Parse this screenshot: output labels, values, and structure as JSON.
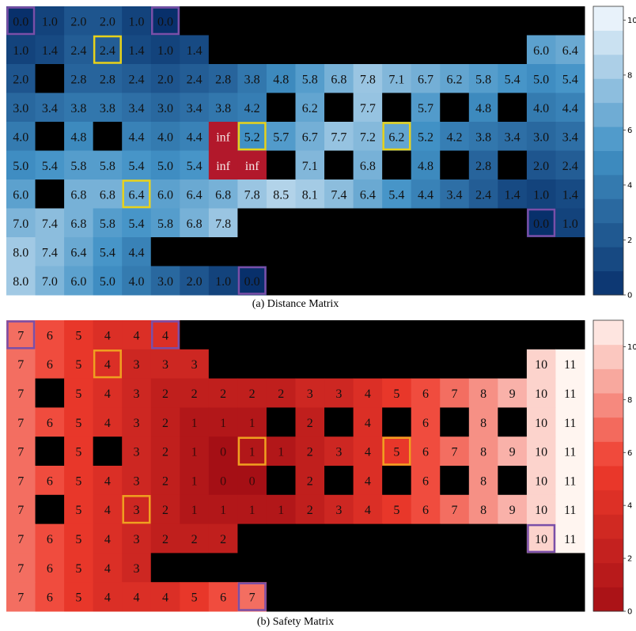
{
  "chart_data": [
    {
      "type": "heatmap",
      "title": "(a) Distance Matrix",
      "colormap": "blues_reversed",
      "colors": {
        "low": "#08306b",
        "mid": "#4292c6",
        "high": "#f7fbff",
        "obstacle": "#000000",
        "highlight_yellow": "#e8d21a",
        "highlight_purple": "#7a4fa8",
        "inf_cell": "#b2182b"
      },
      "colorbar": {
        "min": 0,
        "max": 10.5,
        "ticks": [
          0,
          2,
          4,
          6,
          8,
          10
        ]
      },
      "rows": [
        [
          "0.0",
          "1.0",
          "2.0",
          "2.0",
          "1.0",
          "0.0",
          null,
          null,
          null,
          null,
          null,
          null,
          null,
          null,
          null,
          null,
          null,
          null,
          null,
          null
        ],
        [
          "1.0",
          "1.4",
          "2.4",
          "2.4",
          "1.4",
          "1.0",
          "1.4",
          null,
          null,
          null,
          null,
          null,
          null,
          null,
          null,
          null,
          null,
          null,
          "6.0",
          "6.4"
        ],
        [
          "2.0",
          null,
          "2.8",
          "2.8",
          "2.4",
          "2.0",
          "2.4",
          "2.8",
          "3.8",
          "4.8",
          "5.8",
          "6.8",
          "7.8",
          "7.1",
          "6.7",
          "6.2",
          "5.8",
          "5.4",
          "5.0",
          "5.4"
        ],
        [
          "3.0",
          "3.4",
          "3.8",
          "3.8",
          "3.4",
          "3.0",
          "3.4",
          "3.8",
          "4.2",
          null,
          "6.2",
          null,
          "7.7",
          null,
          "5.7",
          null,
          "4.8",
          null,
          "4.0",
          "4.4"
        ],
        [
          "4.0",
          null,
          "4.8",
          null,
          "4.4",
          "4.0",
          "4.4",
          "inf",
          "5.2",
          "5.7",
          "6.7",
          "7.7",
          "7.2",
          "6.2",
          "5.2",
          "4.2",
          "3.8",
          "3.4",
          "3.0",
          "3.4"
        ],
        [
          "5.0",
          "5.4",
          "5.8",
          "5.8",
          "5.4",
          "5.0",
          "5.4",
          "inf",
          "inf",
          null,
          "7.1",
          null,
          "6.8",
          null,
          "4.8",
          null,
          "2.8",
          null,
          "2.0",
          "2.4"
        ],
        [
          "6.0",
          null,
          "6.8",
          "6.8",
          "6.4",
          "6.0",
          "6.4",
          "6.8",
          "7.8",
          "8.5",
          "8.1",
          "7.4",
          "6.4",
          "5.4",
          "4.4",
          "3.4",
          "2.4",
          "1.4",
          "1.0",
          "1.4"
        ],
        [
          "7.0",
          "7.4",
          "6.8",
          "5.8",
          "5.4",
          "5.8",
          "6.8",
          "7.8",
          null,
          null,
          null,
          null,
          null,
          null,
          null,
          null,
          null,
          null,
          "0.0",
          "1.0"
        ],
        [
          "8.0",
          "7.4",
          "6.4",
          "5.4",
          "4.4",
          null,
          null,
          null,
          null,
          null,
          null,
          null,
          null,
          null,
          null,
          null,
          null,
          null,
          null,
          null
        ],
        [
          "8.0",
          "7.0",
          "6.0",
          "5.0",
          "4.0",
          "3.0",
          "2.0",
          "1.0",
          "0.0",
          null,
          null,
          null,
          null,
          null,
          null,
          null,
          null,
          null,
          null,
          null
        ]
      ],
      "highlights": [
        {
          "row": 0,
          "col": 0,
          "color": "purple"
        },
        {
          "row": 0,
          "col": 5,
          "color": "purple"
        },
        {
          "row": 1,
          "col": 3,
          "color": "yellow"
        },
        {
          "row": 4,
          "col": 8,
          "color": "yellow"
        },
        {
          "row": 4,
          "col": 13,
          "color": "yellow"
        },
        {
          "row": 6,
          "col": 4,
          "color": "yellow"
        },
        {
          "row": 7,
          "col": 18,
          "color": "purple"
        },
        {
          "row": 9,
          "col": 8,
          "color": "purple"
        }
      ]
    },
    {
      "type": "heatmap",
      "title": "(b) Safety Matrix",
      "colormap": "reds_reversed",
      "colors": {
        "low": "#a50f15",
        "mid": "#ef3b2c",
        "high": "#fff5f0",
        "obstacle": "#000000",
        "highlight_yellow": "#f0a020",
        "highlight_purple": "#7a4fa8"
      },
      "colorbar": {
        "min": 0,
        "max": 11,
        "ticks": [
          0,
          2,
          4,
          6,
          8,
          10
        ]
      },
      "rows": [
        [
          "7",
          "6",
          "5",
          "4",
          "4",
          "4",
          null,
          null,
          null,
          null,
          null,
          null,
          null,
          null,
          null,
          null,
          null,
          null,
          null,
          null
        ],
        [
          "7",
          "6",
          "5",
          "4",
          "3",
          "3",
          "3",
          null,
          null,
          null,
          null,
          null,
          null,
          null,
          null,
          null,
          null,
          null,
          "10",
          "11"
        ],
        [
          "7",
          null,
          "5",
          "4",
          "3",
          "2",
          "2",
          "2",
          "2",
          "2",
          "3",
          "3",
          "4",
          "5",
          "6",
          "7",
          "8",
          "9",
          "10",
          "11"
        ],
        [
          "7",
          "6",
          "5",
          "4",
          "3",
          "2",
          "1",
          "1",
          "1",
          null,
          "2",
          null,
          "4",
          null,
          "6",
          null,
          "8",
          null,
          "10",
          "11"
        ],
        [
          "7",
          null,
          "5",
          null,
          "3",
          "2",
          "1",
          "0",
          "1",
          "1",
          "2",
          "3",
          "4",
          "5",
          "6",
          "7",
          "8",
          "9",
          "10",
          "11"
        ],
        [
          "7",
          "6",
          "5",
          "4",
          "3",
          "2",
          "1",
          "0",
          "0",
          null,
          "2",
          null,
          "4",
          null,
          "6",
          null,
          "8",
          null,
          "10",
          "11"
        ],
        [
          "7",
          null,
          "5",
          "4",
          "3",
          "2",
          "1",
          "1",
          "1",
          "1",
          "2",
          "3",
          "4",
          "5",
          "6",
          "7",
          "8",
          "9",
          "10",
          "11"
        ],
        [
          "7",
          "6",
          "5",
          "4",
          "3",
          "2",
          "2",
          "2",
          null,
          null,
          null,
          null,
          null,
          null,
          null,
          null,
          null,
          null,
          "10",
          "11"
        ],
        [
          "7",
          "6",
          "5",
          "4",
          "3",
          null,
          null,
          null,
          null,
          null,
          null,
          null,
          null,
          null,
          null,
          null,
          null,
          null,
          null,
          null
        ],
        [
          "7",
          "6",
          "5",
          "4",
          "4",
          "4",
          "5",
          "6",
          "7",
          null,
          null,
          null,
          null,
          null,
          null,
          null,
          null,
          null,
          null,
          null
        ]
      ],
      "highlights": [
        {
          "row": 0,
          "col": 0,
          "color": "purple"
        },
        {
          "row": 0,
          "col": 5,
          "color": "purple"
        },
        {
          "row": 1,
          "col": 3,
          "color": "yellow"
        },
        {
          "row": 4,
          "col": 8,
          "color": "yellow"
        },
        {
          "row": 4,
          "col": 13,
          "color": "yellow"
        },
        {
          "row": 6,
          "col": 4,
          "color": "yellow"
        },
        {
          "row": 7,
          "col": 18,
          "color": "purple"
        },
        {
          "row": 9,
          "col": 8,
          "color": "purple"
        }
      ]
    }
  ]
}
